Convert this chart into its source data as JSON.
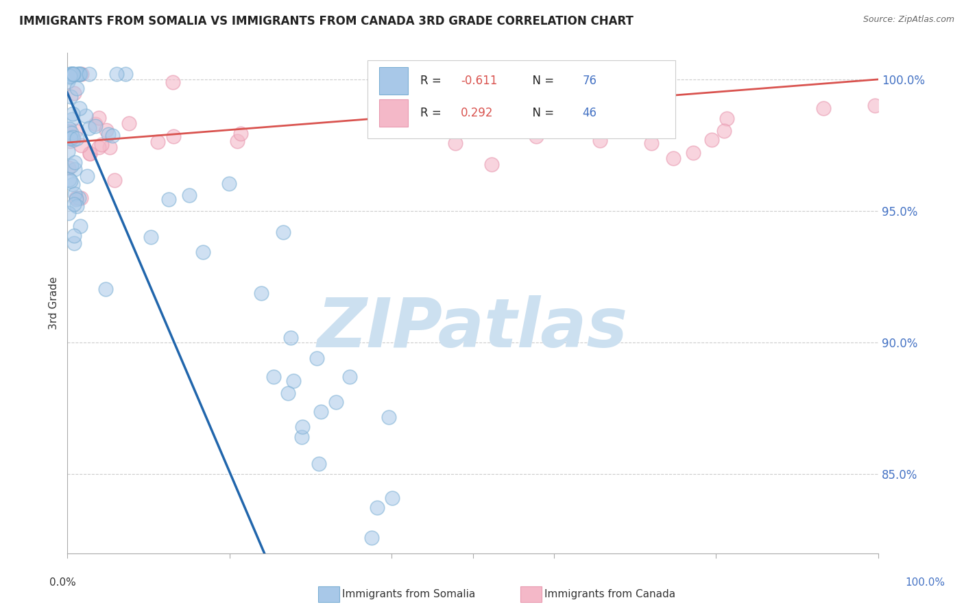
{
  "title": "IMMIGRANTS FROM SOMALIA VS IMMIGRANTS FROM CANADA 3RD GRADE CORRELATION CHART",
  "source": "Source: ZipAtlas.com",
  "ylabel": "3rd Grade",
  "watermark": "ZIPatlas",
  "somalia": {
    "label": "Immigrants from Somalia",
    "color": "#a8c8e8",
    "edge_color": "#7bafd4",
    "R": -0.611,
    "N": 76,
    "trend_color": "#2166ac"
  },
  "canada": {
    "label": "Immigrants from Canada",
    "color": "#f4b8c8",
    "edge_color": "#e899b0",
    "R": 0.292,
    "N": 46,
    "trend_color": "#d9534f"
  },
  "xlim": [
    0.0,
    1.0
  ],
  "ylim": [
    0.82,
    1.01
  ],
  "yticks": [
    0.85,
    0.9,
    0.95,
    1.0
  ],
  "ytick_labels": [
    "85.0%",
    "90.0%",
    "95.0%",
    "100.0%"
  ],
  "background_color": "#ffffff",
  "grid_color": "#cccccc",
  "watermark_color": "#cce0f0",
  "watermark_fontsize": 72
}
